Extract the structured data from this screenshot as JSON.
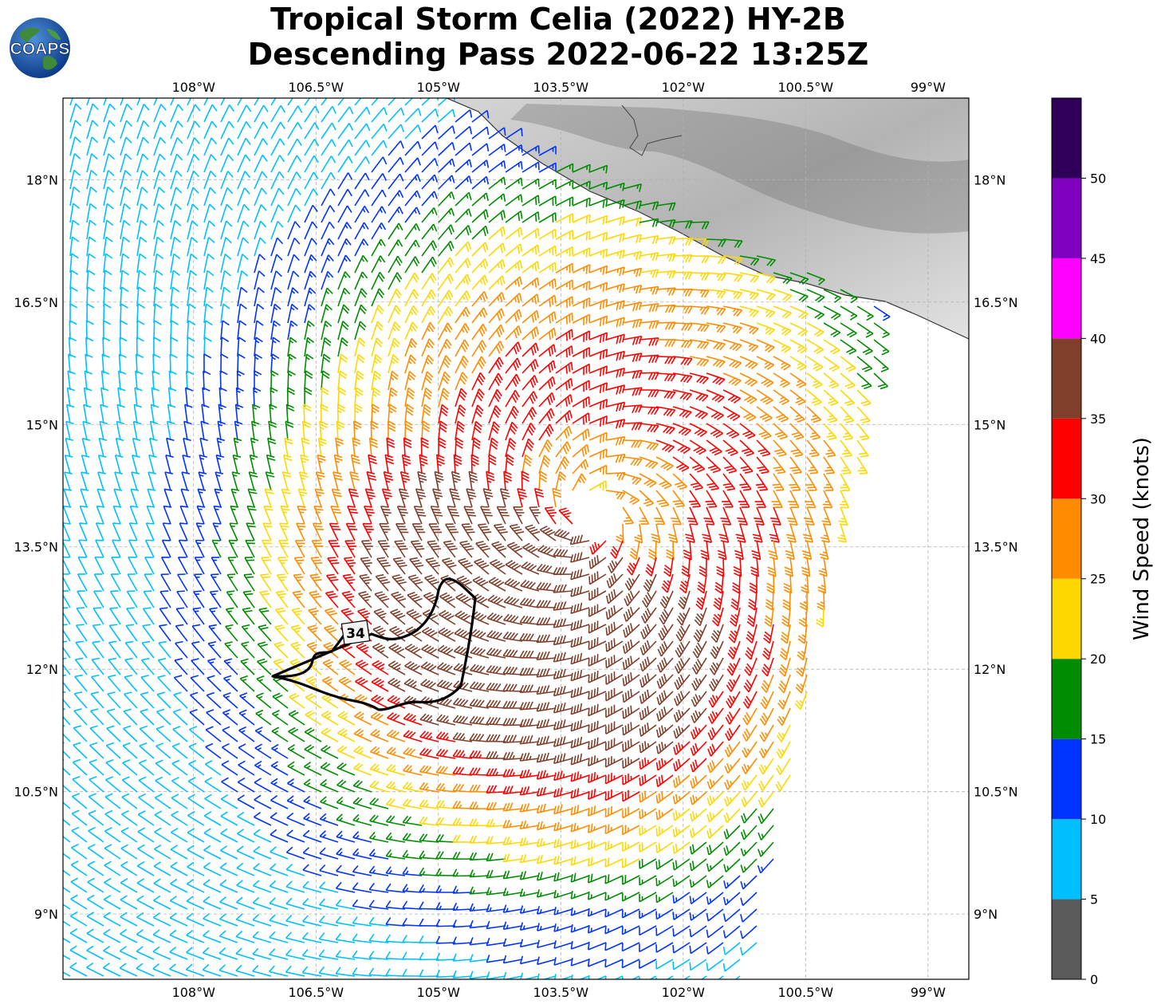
{
  "title": {
    "line1": "Tropical Storm Celia (2022) HY-2B",
    "line2": "Descending Pass 2022-06-22 13:25Z"
  },
  "logo": {
    "text": "COAPS"
  },
  "map": {
    "lon_range": [
      -109.6,
      -98.5
    ],
    "lat_range": [
      8.2,
      19.0
    ],
    "lon_ticks": [
      "108°W",
      "106.5°W",
      "105°W",
      "103.5°W",
      "102°W",
      "100.5°W",
      "99°W"
    ],
    "lon_tick_values": [
      -108,
      -106.5,
      -105,
      -103.5,
      -102,
      -100.5,
      -99
    ],
    "lat_ticks": [
      "9°N",
      "10.5°N",
      "12°N",
      "13.5°N",
      "15°N",
      "16.5°N",
      "18°N"
    ],
    "lat_tick_values": [
      9,
      10.5,
      12,
      13.5,
      15,
      16.5,
      18
    ],
    "storm_center": {
      "lon": -103.1,
      "lat": 13.9
    },
    "contour_label": "34",
    "land_color": "#e8e8e8",
    "coast_color": "#333333"
  },
  "colorbar": {
    "label": "Wind Speed (knots)",
    "ticks": [
      "0",
      "5",
      "10",
      "15",
      "20",
      "25",
      "30",
      "35",
      "40",
      "45",
      "50"
    ],
    "bins": [
      {
        "min": 0,
        "max": 5,
        "color": "#5a5a5a"
      },
      {
        "min": 5,
        "max": 10,
        "color": "#00bfff"
      },
      {
        "min": 10,
        "max": 15,
        "color": "#0033ff"
      },
      {
        "min": 15,
        "max": 20,
        "color": "#008c00"
      },
      {
        "min": 20,
        "max": 25,
        "color": "#ffd700"
      },
      {
        "min": 25,
        "max": 30,
        "color": "#ff8c00"
      },
      {
        "min": 30,
        "max": 35,
        "color": "#ff0000"
      },
      {
        "min": 35,
        "max": 40,
        "color": "#7f3f2a"
      },
      {
        "min": 40,
        "max": 45,
        "color": "#ff00ff"
      },
      {
        "min": 45,
        "max": 50,
        "color": "#8000bf"
      },
      {
        "min": 50,
        "max": 55,
        "color": "#2e0059"
      }
    ]
  }
}
